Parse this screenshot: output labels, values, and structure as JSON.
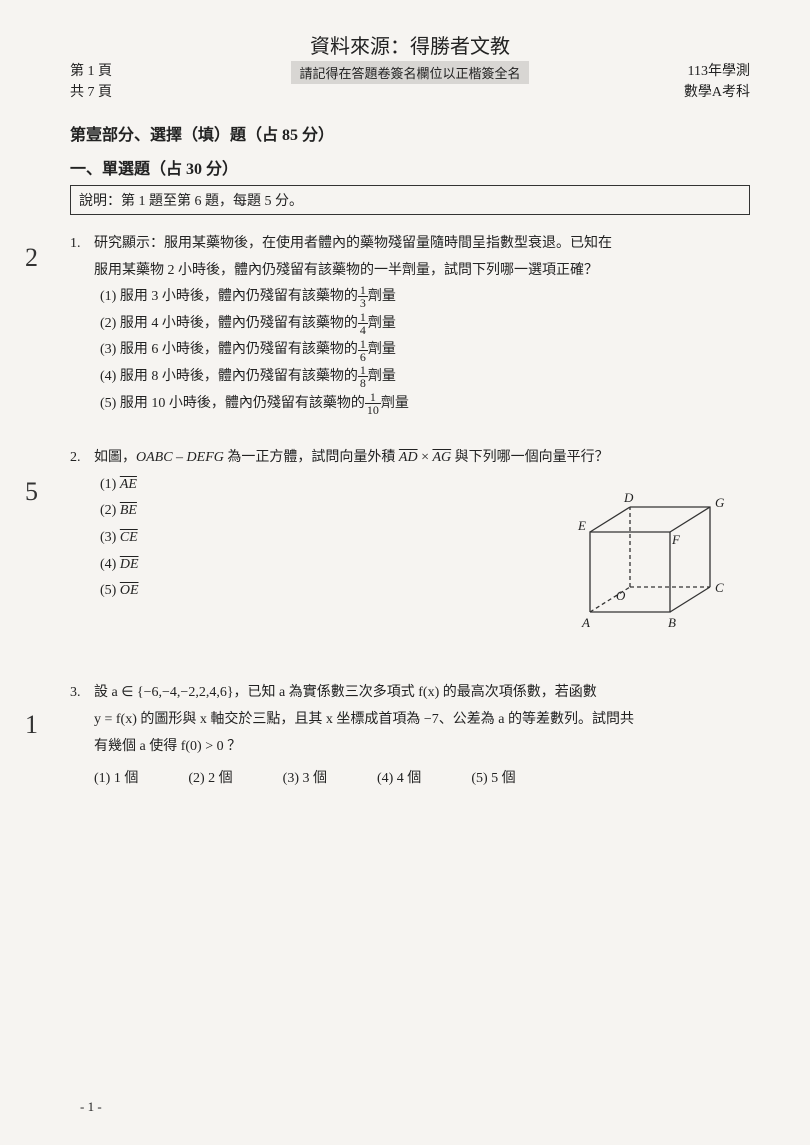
{
  "source_line": "資料來源：得勝者文教",
  "header": {
    "page_cur": "第 1 頁",
    "page_total": "共 7 頁",
    "center_notice": "請記得在答題卷簽名欄位以正楷簽全名",
    "year": "113年學測",
    "subject": "數學A考科"
  },
  "part_title": "第壹部分、選擇（填）題（占 85 分）",
  "section_title": "一、單選題（占 30 分）",
  "instruction": "說明：第 1 題至第 6 題，每題 5 分。",
  "q1": {
    "annotation": "2",
    "num": "1.",
    "stem_a": "研究顯示：服用某藥物後，在使用者體內的藥物殘留量隨時間呈指數型衰退。已知在",
    "stem_b": "服用某藥物 2 小時後，體內仍殘留有該藥物的一半劑量，試問下列哪一選項正確？",
    "opts": [
      {
        "lead": "(1) 服用 3 小時後，體內仍殘留有該藥物的",
        "num": "1",
        "den": "3",
        "tail": "劑量"
      },
      {
        "lead": "(2) 服用 4 小時後，體內仍殘留有該藥物的",
        "num": "1",
        "den": "4",
        "tail": "劑量"
      },
      {
        "lead": "(3) 服用 6 小時後，體內仍殘留有該藥物的",
        "num": "1",
        "den": "6",
        "tail": "劑量"
      },
      {
        "lead": "(4) 服用 8 小時後，體內仍殘留有該藥物的",
        "num": "1",
        "den": "8",
        "tail": "劑量"
      },
      {
        "lead": "(5) 服用 10 小時後，體內仍殘留有該藥物的",
        "num": "1",
        "den": "10",
        "tail": "劑量"
      }
    ]
  },
  "q2": {
    "annotation": "5",
    "num": "2.",
    "stem": "如圖，OABC – DEFG 為一正方體，試問向量外積 AD × AG 與下列哪一個向量平行？",
    "opts": [
      "(1) AE",
      "(2) BE",
      "(3) CE",
      "(4) DE",
      "(5) OE"
    ],
    "cube": {
      "stroke": "#333",
      "labels": {
        "A": "A",
        "B": "B",
        "C": "C",
        "O": "O",
        "D": "D",
        "E": "E",
        "F": "F",
        "G": "G"
      }
    }
  },
  "q3": {
    "annotation": "1",
    "num": "3.",
    "stem_a": "設 a ∈ {−6,−4,−2,2,4,6}，已知 a 為實係數三次多項式 f(x) 的最高次項係數，若函數",
    "stem_b": "y = f(x) 的圖形與 x 軸交於三點，且其 x 坐標成首項為 −7、公差為 a 的等差數列。試問共",
    "stem_c": "有幾個 a 使得 f(0) > 0 ？",
    "opts": [
      "(1) 1 個",
      "(2) 2 個",
      "(3) 3 個",
      "(4) 4 個",
      "(5) 5 個"
    ]
  },
  "footer": "- 1 -"
}
